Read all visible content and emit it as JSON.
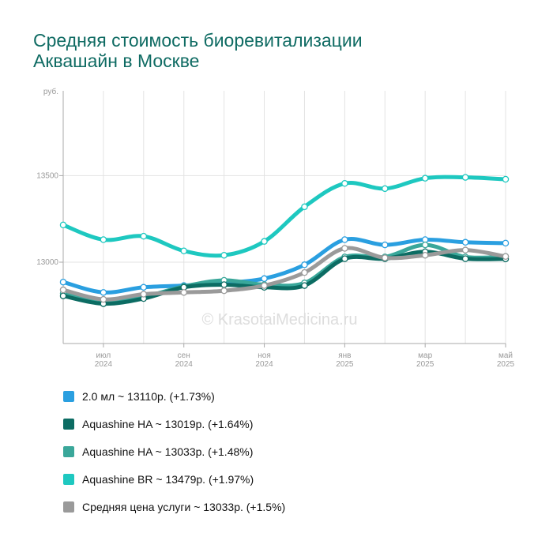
{
  "title_line1": "Средняя стоимость биоревитализации",
  "title_line2": "Аквашайн в Москве",
  "watermark": "© KrasotaiMedicina.ru",
  "chart_data": {
    "type": "line",
    "unit_label": "руб.",
    "ylim": [
      12530,
      13990
    ],
    "yticks": [
      {
        "value": 13000,
        "label": "13000"
      },
      {
        "value": 13500,
        "label": "13500"
      }
    ],
    "x_labels": [
      {
        "index": 1,
        "month": "июл",
        "year": "2024"
      },
      {
        "index": 3,
        "month": "сен",
        "year": "2024"
      },
      {
        "index": 5,
        "month": "ноя",
        "year": "2024"
      },
      {
        "index": 7,
        "month": "янв",
        "year": "2025"
      },
      {
        "index": 9,
        "month": "мар",
        "year": "2025"
      },
      {
        "index": 11,
        "month": "май",
        "year": "2025"
      }
    ],
    "points": 12,
    "grid": true,
    "legend_position": "bottom",
    "series": [
      {
        "name": "2.0 мл",
        "color": "#2a9fe0",
        "legend_text": "2.0 мл ~ 13110р. (+1.73%)",
        "values": [
          12885,
          12825,
          12855,
          12865,
          12880,
          12905,
          12985,
          13130,
          13100,
          13130,
          13115,
          13110
        ]
      },
      {
        "name": "Aquashine HA",
        "color": "#0c6c63",
        "legend_text": "Aquashine HA ~ 13019р. (+1.64%)",
        "values": [
          12805,
          12760,
          12790,
          12855,
          12870,
          12855,
          12865,
          13020,
          13020,
          13060,
          13020,
          13019
        ]
      },
      {
        "name": "Aquashine HA",
        "color": "#3aa79a",
        "legend_text": "Aquashine HA ~ 13033р. (+1.48%)",
        "values": [
          12820,
          12775,
          12800,
          12860,
          12895,
          12870,
          12880,
          13030,
          13030,
          13100,
          13030,
          13033
        ]
      },
      {
        "name": "Aquashine BR",
        "color": "#1ec8c0",
        "legend_text": "Aquashine BR ~ 13479р. (+1.97%)",
        "values": [
          13215,
          13130,
          13150,
          13065,
          13040,
          13120,
          13320,
          13455,
          13425,
          13485,
          13490,
          13479
        ]
      },
      {
        "name": "Средняя цена услуги",
        "color": "#9a9a9a",
        "legend_text": "Средняя цена услуги ~ 13033р. (+1.5%)",
        "values": [
          12840,
          12785,
          12815,
          12825,
          12835,
          12865,
          12940,
          13080,
          13025,
          13040,
          13070,
          13033
        ]
      }
    ]
  }
}
